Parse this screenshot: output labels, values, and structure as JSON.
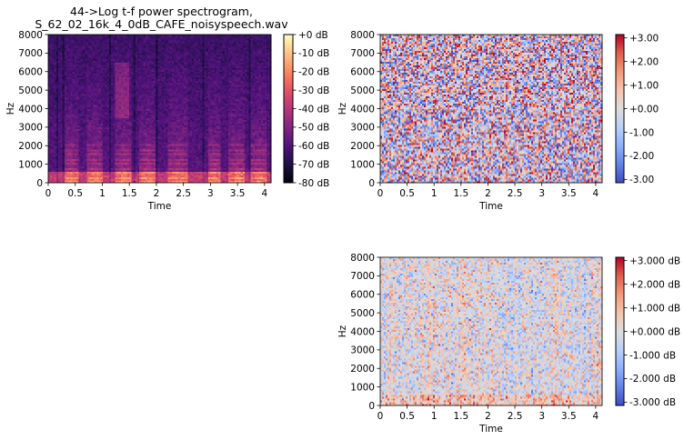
{
  "chart_data": [
    {
      "type": "heatmap",
      "title": "44->Log t-f power spectrogram,\nS_62_02_16k_4_0dB_CAFE_noisyspeech.wav",
      "title_lines": [
        "44->Log t-f power spectrogram,",
        "S_62_02_16k_4_0dB_CAFE_noisyspeech.wav"
      ],
      "xlabel": "Time",
      "ylabel": "Hz",
      "x_ticks": [
        "0",
        "0.5",
        "1",
        "1.5",
        "2",
        "2.5",
        "3",
        "3.5",
        "4"
      ],
      "x_tick_values": [
        0,
        0.5,
        1,
        1.5,
        2,
        2.5,
        3,
        3.5,
        4
      ],
      "xlim": [
        0,
        4.12
      ],
      "y_ticks": [
        "0",
        "1000",
        "2000",
        "3000",
        "4000",
        "5000",
        "6000",
        "7000",
        "8000"
      ],
      "y_tick_values": [
        0,
        1000,
        2000,
        3000,
        4000,
        5000,
        6000,
        7000,
        8000
      ],
      "ylim": [
        0,
        8000
      ],
      "colorbar_ticks": [
        "+0 dB",
        "-10 dB",
        "-20 dB",
        "-30 dB",
        "-40 dB",
        "-50 dB",
        "-60 dB",
        "-70 dB",
        "-80 dB"
      ],
      "colorbar_values": [
        0,
        -10,
        -20,
        -30,
        -40,
        -50,
        -60,
        -70,
        -80
      ],
      "clim": [
        -80,
        0
      ],
      "colormap": "magma",
      "speech_bursts": [
        [
          0.3,
          0.55
        ],
        [
          0.7,
          1.0
        ],
        [
          1.25,
          1.55
        ],
        [
          1.7,
          2.0
        ],
        [
          2.2,
          2.6
        ],
        [
          2.95,
          3.2
        ],
        [
          3.35,
          3.65
        ],
        [
          3.75,
          4.05
        ]
      ]
    },
    {
      "type": "heatmap",
      "title": "",
      "xlabel": "Time",
      "ylabel": "Hz",
      "x_ticks": [
        "0",
        "0.5",
        "1",
        "1.5",
        "2",
        "2.5",
        "3",
        "3.5",
        "4"
      ],
      "x_tick_values": [
        0,
        0.5,
        1,
        1.5,
        2,
        2.5,
        3,
        3.5,
        4
      ],
      "xlim": [
        0,
        4.12
      ],
      "y_ticks": [
        "0",
        "1000",
        "2000",
        "3000",
        "4000",
        "5000",
        "6000",
        "7000",
        "8000"
      ],
      "y_tick_values": [
        0,
        1000,
        2000,
        3000,
        4000,
        5000,
        6000,
        7000,
        8000
      ],
      "ylim": [
        0,
        8000
      ],
      "colorbar_ticks": [
        "+3.00",
        "+2.00",
        "+1.00",
        "+0.00",
        "-1.00",
        "-2.00",
        "-3.00"
      ],
      "colorbar_values": [
        3,
        2,
        1,
        0,
        -1,
        -2,
        -3
      ],
      "clim": [
        -3.14,
        3.14
      ],
      "colormap": "coolwarm"
    },
    {
      "type": "heatmap",
      "title": "",
      "xlabel": "Time",
      "ylabel": "Hz",
      "x_ticks": [
        "0",
        "0.5",
        "1",
        "1.5",
        "2",
        "2.5",
        "3",
        "3.5",
        "4"
      ],
      "x_tick_values": [
        0,
        0.5,
        1,
        1.5,
        2,
        2.5,
        3,
        3.5,
        4
      ],
      "xlim": [
        0,
        4.12
      ],
      "y_ticks": [
        "0",
        "1000",
        "2000",
        "3000",
        "4000",
        "5000",
        "6000",
        "7000",
        "8000"
      ],
      "y_tick_values": [
        0,
        1000,
        2000,
        3000,
        4000,
        5000,
        6000,
        7000,
        8000
      ],
      "ylim": [
        0,
        8000
      ],
      "colorbar_ticks": [
        "+3.000 dB",
        "+2.000 dB",
        "+1.000 dB",
        "+0.000 dB",
        "-1.000 dB",
        "-2.000 dB",
        "-3.000 dB"
      ],
      "colorbar_values": [
        3,
        2,
        1,
        0,
        -1,
        -2,
        -3
      ],
      "clim": [
        -3.14,
        3.14
      ],
      "colormap": "coolwarm"
    }
  ]
}
